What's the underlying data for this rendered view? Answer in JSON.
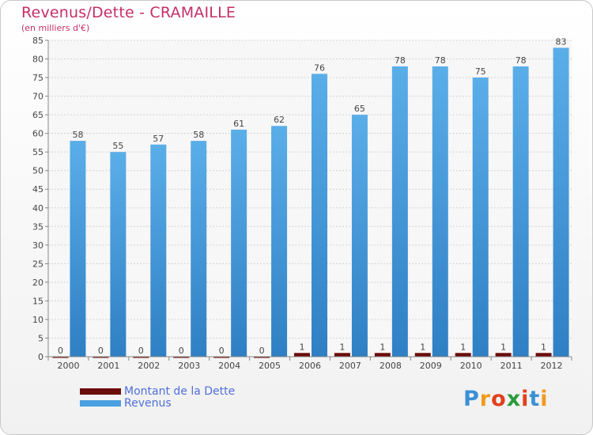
{
  "chart_data": {
    "type": "bar",
    "title": "Revenus/Dette - CRAMAILLE",
    "subtitle": "(en milliers d'€)",
    "categories": [
      "2000",
      "2001",
      "2002",
      "2003",
      "2004",
      "2005",
      "2006",
      "2007",
      "2008",
      "2009",
      "2010",
      "2011",
      "2012"
    ],
    "series": [
      {
        "name": "Montant de la Dette",
        "color": "#6b0b0b",
        "values": [
          0,
          0,
          0,
          0,
          0,
          0,
          1,
          1,
          1,
          1,
          1,
          1,
          1
        ]
      },
      {
        "name": "Revenus",
        "color": "#4aa0e0",
        "values": [
          58,
          55,
          57,
          58,
          61,
          62,
          76,
          65,
          78,
          78,
          75,
          78,
          83
        ]
      }
    ],
    "ylim": [
      0,
      85
    ],
    "yticks": [
      0,
      5,
      10,
      15,
      20,
      25,
      30,
      35,
      40,
      45,
      50,
      55,
      60,
      65,
      70,
      75,
      80,
      85
    ],
    "grid": true,
    "legend_position": "bottom-left"
  },
  "logo": {
    "letters": [
      "P",
      "r",
      "o",
      "x",
      "i",
      "t",
      "i"
    ],
    "colors": [
      "#3b8fd6",
      "#f29a1c",
      "#e0401c",
      "#2a9b3a",
      "#e0401c",
      "#3b8fd6",
      "#f29a1c"
    ]
  }
}
